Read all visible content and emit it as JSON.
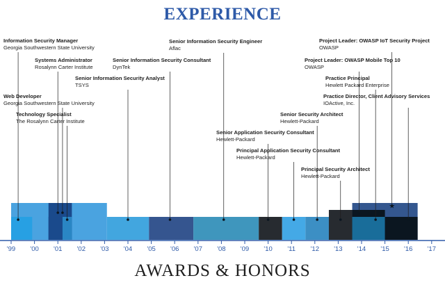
{
  "header": {
    "experience_title": "EXPERIENCE",
    "awards_title": "AWARDS & HONORS"
  },
  "axis": {
    "start_year": 1999,
    "end_year": 2017,
    "ticks": [
      "'99",
      "'00",
      "'01",
      "'02",
      "'03",
      "'04",
      "'05",
      "'06",
      "'07",
      "'08",
      "'09",
      "'10",
      "'11",
      "'12",
      "'13",
      "'14",
      "'15",
      "'16",
      "'17"
    ]
  },
  "bars": [
    {
      "start": 1999.0,
      "end": 2003.1,
      "lane": "top",
      "color": "#4aa3e0"
    },
    {
      "start": 1999.0,
      "end": 1999.9,
      "lane": "low",
      "color": "#27a0e3"
    },
    {
      "start": 2000.6,
      "end": 2001.6,
      "lane": "top",
      "color": "#1a4a8c"
    },
    {
      "start": 2000.6,
      "end": 2001.2,
      "lane": "low",
      "color": "#1a4a8c"
    },
    {
      "start": 2001.2,
      "end": 2001.6,
      "lane": "low",
      "color": "#2a86c4"
    },
    {
      "start": 2003.1,
      "end": 2004.9,
      "lane": "low",
      "color": "#42a6df"
    },
    {
      "start": 2004.9,
      "end": 2006.8,
      "lane": "low",
      "color": "#35558f"
    },
    {
      "start": 2006.8,
      "end": 2009.6,
      "lane": "low",
      "color": "#3f96bd"
    },
    {
      "start": 2009.6,
      "end": 2010.6,
      "lane": "low",
      "color": "#272b30"
    },
    {
      "start": 2010.6,
      "end": 2011.6,
      "lane": "low",
      "color": "#44a9e6"
    },
    {
      "start": 2011.6,
      "end": 2012.6,
      "lane": "low",
      "color": "#3c8fc4"
    },
    {
      "start": 2012.6,
      "end": 2013.6,
      "lane": "low",
      "color": "#173867"
    },
    {
      "start": 2012.6,
      "end": 2013.6,
      "lane": "mid",
      "color": "#272b30"
    },
    {
      "start": 2013.6,
      "end": 2016.4,
      "lane": "top",
      "color": "#34578f"
    },
    {
      "start": 2013.6,
      "end": 2015.0,
      "lane": "mid",
      "color": "#0b1620"
    },
    {
      "start": 2013.6,
      "end": 2015.0,
      "lane": "low",
      "color": "#196d9a"
    },
    {
      "start": 2015.0,
      "end": 2016.4,
      "lane": "low",
      "color": "#0b1620"
    }
  ],
  "positions": [
    {
      "role": "Information Security Manager",
      "org": "Georgia Southwestern State University",
      "year": 1999.3,
      "marker": "dot"
    },
    {
      "role": "Systems Administrator",
      "org": "Rosalynn Carter Institute",
      "year": 2001.0,
      "marker": "dot"
    },
    {
      "role": "Senior Information Security Analyst",
      "org": "TSYS",
      "year": 2004.0,
      "marker": "dot"
    },
    {
      "role": "Web Developer",
      "org": "Georgia Southwestern State University",
      "year": 2001.2,
      "marker": "dot"
    },
    {
      "role": "Technology Specialist",
      "org": "The Rosalynn Carter Institute",
      "year": 2001.4,
      "marker": "dot"
    },
    {
      "role": "Senior Information Security Consultant",
      "org": "DynTek",
      "year": 2005.8,
      "marker": "dot"
    },
    {
      "role": "Senior Information Security Engineer",
      "org": "Aflac",
      "year": 2008.1,
      "marker": "dot"
    },
    {
      "role": "Senior Application Security Consultant",
      "org": "Hewlett-Packard",
      "year": 2010.0,
      "marker": "dot"
    },
    {
      "role": "Principal Application Security Consultant",
      "org": "Hewlett-Packard",
      "year": 2011.1,
      "marker": "dot"
    },
    {
      "role": "Senior Security Architect",
      "org": "Hewlett-Packard",
      "year": 2012.1,
      "marker": "dot"
    },
    {
      "role": "Principal Security Architect",
      "org": "Hewlett-Packard",
      "year": 2013.1,
      "marker": "dot"
    },
    {
      "role": "Project Leader: OWASP Mobile Top 10",
      "org": "OWASP",
      "year": 2013.9,
      "marker": "dot"
    },
    {
      "role": "Practice Principal",
      "org": "Hewlett Packard Enterprise",
      "year": 2014.6,
      "marker": "dot"
    },
    {
      "role": "Project Leader: OWASP IoT Security Project",
      "org": "OWASP",
      "year": 2015.3,
      "marker": "star"
    },
    {
      "role": "Practice Director, Client Advisory Services",
      "org": "IOActive, Inc.",
      "year": 2016.0,
      "marker": "dot"
    }
  ]
}
